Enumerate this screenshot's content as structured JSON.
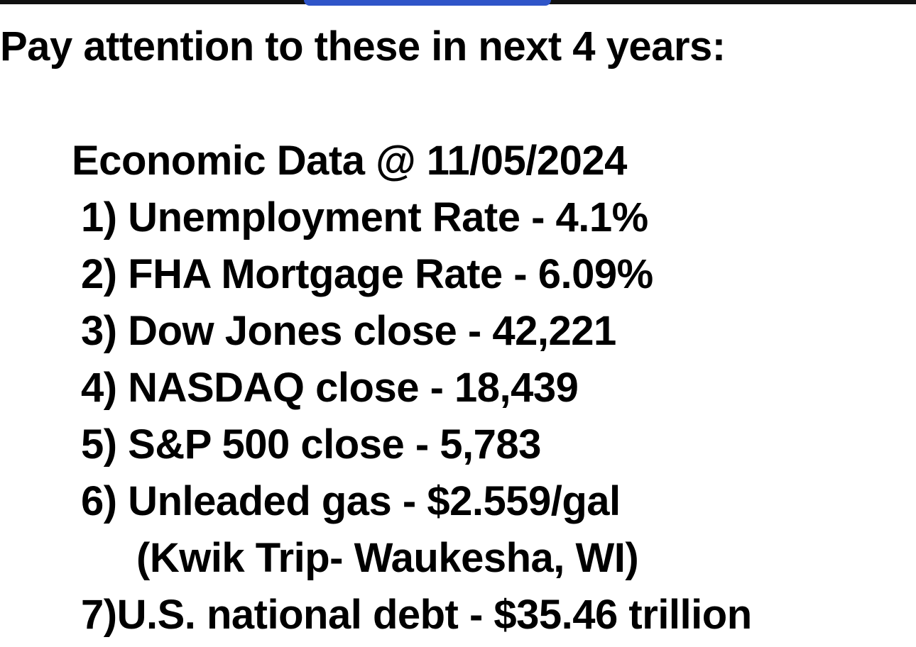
{
  "heading": "Pay attention to these in next 4 years:",
  "date_line": "Economic Data @ 11/05/2024",
  "items": [
    "1) Unemployment Rate - 4.1%",
    "2) FHA Mortgage Rate - 6.09%",
    "3) Dow Jones close - 42,221",
    "4) NASDAQ close - 18,439",
    "5) S&P 500 close - 5,783",
    "6) Unleaded gas - $2.559/gal",
    "7)U.S. national debt - $35.46 trillion"
  ],
  "item_6_note": "(Kwik Trip- Waukesha, WI)",
  "colors": {
    "top_bar": "#111111",
    "top_tab": "#2f55c8",
    "text": "#000000",
    "background": "#ffffff"
  }
}
